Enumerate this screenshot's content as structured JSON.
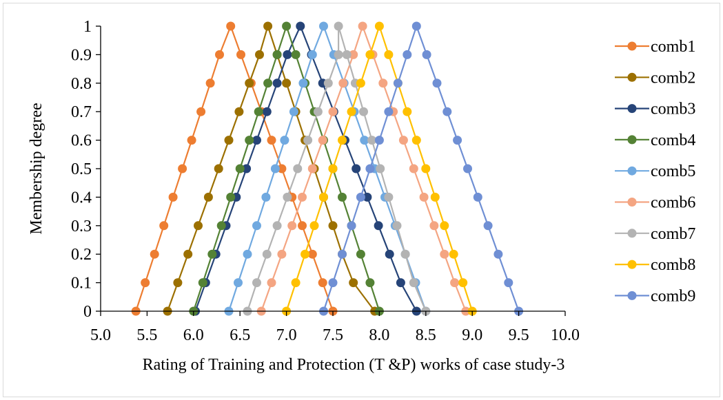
{
  "chart_data": {
    "type": "line",
    "title": "",
    "xlabel": "Rating of Training and Protection (T &P) works of case study-3",
    "ylabel": "Membership degree",
    "xlim": [
      5.0,
      10.0
    ],
    "ylim": [
      0,
      1
    ],
    "x_ticks": [
      "5.0",
      "5.5",
      "6.0",
      "6.5",
      "7.0",
      "7.5",
      "8.0",
      "8.5",
      "9.0",
      "9.5",
      "10.0"
    ],
    "y_ticks": [
      "0",
      "0.1",
      "0.2",
      "0.3",
      "0.4",
      "0.5",
      "0.6",
      "0.7",
      "0.8",
      "0.9",
      "1"
    ],
    "legend_position": "right",
    "series": [
      {
        "name": "comb1",
        "color": "#ed7d31",
        "x": [
          5.38,
          5.48,
          5.58,
          5.68,
          5.78,
          5.88,
          5.98,
          6.08,
          6.18,
          6.28,
          6.4,
          6.51,
          6.62,
          6.73,
          6.84,
          6.95,
          7.06,
          7.17,
          7.28,
          7.39,
          7.5
        ],
        "y": [
          0,
          0.1,
          0.2,
          0.3,
          0.4,
          0.5,
          0.6,
          0.7,
          0.8,
          0.9,
          1,
          0.9,
          0.8,
          0.7,
          0.6,
          0.5,
          0.4,
          0.3,
          0.2,
          0.1,
          0
        ]
      },
      {
        "name": "comb2",
        "color": "#9c7000",
        "x": [
          5.72,
          5.83,
          5.94,
          6.05,
          6.16,
          6.27,
          6.38,
          6.49,
          6.6,
          6.71,
          6.8,
          6.9,
          7.0,
          7.1,
          7.2,
          7.3,
          7.4,
          7.5,
          7.6,
          7.72,
          7.95
        ],
        "y": [
          0,
          0.1,
          0.2,
          0.3,
          0.4,
          0.5,
          0.6,
          0.7,
          0.8,
          0.9,
          1,
          0.9,
          0.8,
          0.7,
          0.6,
          0.5,
          0.4,
          0.3,
          0.2,
          0.1,
          0
        ]
      },
      {
        "name": "comb3",
        "color": "#264478",
        "x": [
          6.02,
          6.13,
          6.24,
          6.35,
          6.46,
          6.57,
          6.68,
          6.79,
          6.9,
          7.01,
          7.15,
          7.27,
          7.39,
          7.51,
          7.63,
          7.75,
          7.87,
          7.99,
          8.11,
          8.23,
          8.4
        ],
        "y": [
          0,
          0.1,
          0.2,
          0.3,
          0.4,
          0.5,
          0.6,
          0.7,
          0.8,
          0.9,
          1,
          0.9,
          0.8,
          0.7,
          0.6,
          0.5,
          0.4,
          0.3,
          0.2,
          0.1,
          0
        ]
      },
      {
        "name": "comb4",
        "color": "#548235",
        "x": [
          6.0,
          6.1,
          6.2,
          6.3,
          6.4,
          6.5,
          6.6,
          6.7,
          6.8,
          6.9,
          7.0,
          7.1,
          7.2,
          7.3,
          7.4,
          7.5,
          7.6,
          7.7,
          7.8,
          7.9,
          8.0
        ],
        "y": [
          0,
          0.1,
          0.2,
          0.3,
          0.4,
          0.5,
          0.6,
          0.7,
          0.8,
          0.9,
          1,
          0.9,
          0.8,
          0.7,
          0.6,
          0.5,
          0.4,
          0.3,
          0.2,
          0.1,
          0
        ]
      },
      {
        "name": "comb5",
        "color": "#70a9e0",
        "x": [
          6.38,
          6.48,
          6.58,
          6.68,
          6.78,
          6.88,
          6.98,
          7.08,
          7.18,
          7.28,
          7.4,
          7.51,
          7.62,
          7.73,
          7.84,
          7.95,
          8.06,
          8.17,
          8.28,
          8.39,
          8.5
        ],
        "y": [
          0,
          0.1,
          0.2,
          0.3,
          0.4,
          0.5,
          0.6,
          0.7,
          0.8,
          0.9,
          1,
          0.9,
          0.8,
          0.7,
          0.6,
          0.5,
          0.4,
          0.3,
          0.2,
          0.1,
          0
        ]
      },
      {
        "name": "comb6",
        "color": "#f4a582",
        "x": [
          6.73,
          6.84,
          6.95,
          7.06,
          7.17,
          7.28,
          7.39,
          7.5,
          7.61,
          7.72,
          7.82,
          7.93,
          8.04,
          8.15,
          8.26,
          8.37,
          8.48,
          8.59,
          8.7,
          8.81,
          8.93
        ],
        "y": [
          0,
          0.1,
          0.2,
          0.3,
          0.4,
          0.5,
          0.6,
          0.7,
          0.8,
          0.9,
          1,
          0.9,
          0.8,
          0.7,
          0.6,
          0.5,
          0.4,
          0.3,
          0.2,
          0.1,
          0
        ]
      },
      {
        "name": "comb7",
        "color": "#b3b3b3",
        "x": [
          6.58,
          6.68,
          6.79,
          6.9,
          7.01,
          7.12,
          7.23,
          7.34,
          7.45,
          7.56,
          7.56,
          7.65,
          7.74,
          7.83,
          7.92,
          8.01,
          8.1,
          8.19,
          8.28,
          8.37,
          8.5
        ],
        "y": [
          0,
          0.1,
          0.2,
          0.3,
          0.4,
          0.5,
          0.6,
          0.7,
          0.8,
          0.9,
          1,
          0.9,
          0.8,
          0.7,
          0.6,
          0.5,
          0.4,
          0.3,
          0.2,
          0.1,
          0
        ]
      },
      {
        "name": "comb8",
        "color": "#ffc000",
        "x": [
          7.0,
          7.1,
          7.2,
          7.3,
          7.4,
          7.5,
          7.6,
          7.7,
          7.8,
          7.9,
          8.0,
          8.1,
          8.2,
          8.3,
          8.4,
          8.5,
          8.6,
          8.7,
          8.8,
          8.9,
          9.0
        ],
        "y": [
          0,
          0.1,
          0.2,
          0.3,
          0.4,
          0.5,
          0.6,
          0.7,
          0.8,
          0.9,
          1,
          0.9,
          0.8,
          0.7,
          0.6,
          0.5,
          0.4,
          0.3,
          0.2,
          0.1,
          0
        ]
      },
      {
        "name": "comb9",
        "color": "#6f8fd4",
        "x": [
          7.4,
          7.5,
          7.6,
          7.7,
          7.8,
          7.9,
          8.0,
          8.1,
          8.2,
          8.3,
          8.4,
          8.51,
          8.62,
          8.73,
          8.84,
          8.95,
          9.06,
          9.17,
          9.28,
          9.39,
          9.5
        ],
        "y": [
          0,
          0.1,
          0.2,
          0.3,
          0.4,
          0.5,
          0.6,
          0.7,
          0.8,
          0.9,
          1,
          0.9,
          0.8,
          0.7,
          0.6,
          0.5,
          0.4,
          0.3,
          0.2,
          0.1,
          0
        ]
      }
    ]
  }
}
